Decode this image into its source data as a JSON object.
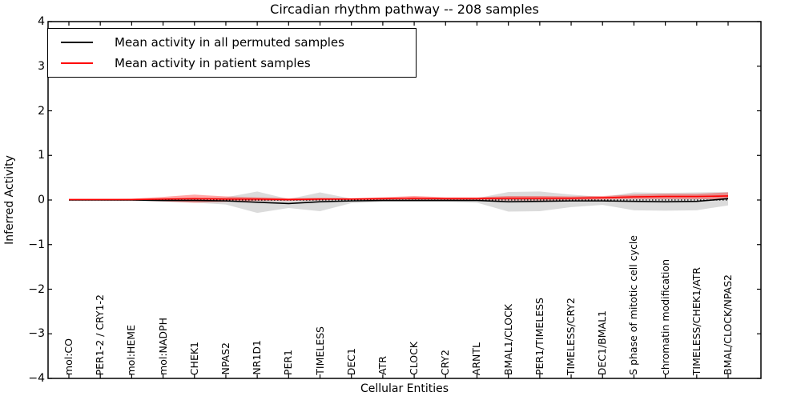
{
  "chart_data": {
    "type": "line",
    "title": "Circadian rhythm pathway -- 208 samples",
    "xlabel": "Cellular Entities",
    "ylabel": "Inferred Activity",
    "ylim": [
      -4,
      4
    ],
    "ytick_interval": 1,
    "grid": false,
    "legend_position": "upper left",
    "baseline": 0,
    "baseline_style": "dotted",
    "categories": [
      "mol:CO",
      "PER1-2 / CRY1-2",
      "mol:HEME",
      "mol:NADPH",
      "CHEK1",
      "NPAS2",
      "NR1D1",
      "PER1",
      "TIMELESS",
      "DEC1",
      "ATR",
      "CLOCK",
      "CRY2",
      "ARNTL",
      "BMAL1/CLOCK",
      "PER1/TIMELESS",
      "TIMELESS/CRY2",
      "DEC1/BMAL1",
      "S phase of mitotic cell cycle",
      "chromatin modification",
      "TIMELESS/CHEK1/ATR",
      "BMAL/CLOCK/NPAS2"
    ],
    "series": [
      {
        "id": "permuted",
        "name": "Mean activity in all permuted samples",
        "color": "#000000",
        "band_color": "rgba(0,0,0,0.14)",
        "values": [
          0.0,
          0.0,
          0.0,
          -0.01,
          -0.01,
          -0.02,
          -0.05,
          -0.08,
          -0.04,
          -0.02,
          -0.01,
          -0.01,
          -0.01,
          -0.01,
          -0.04,
          -0.03,
          -0.02,
          -0.02,
          -0.03,
          -0.04,
          -0.03,
          0.03
        ],
        "band_halfwidth": [
          0.01,
          0.01,
          0.02,
          0.03,
          0.05,
          0.08,
          0.24,
          0.1,
          0.21,
          0.05,
          0.03,
          0.03,
          0.03,
          0.05,
          0.22,
          0.22,
          0.14,
          0.09,
          0.2,
          0.2,
          0.2,
          0.15
        ]
      },
      {
        "id": "patient",
        "name": "Mean activity in patient samples",
        "color": "#ff0000",
        "band_color": "rgba(255,0,0,0.35)",
        "values": [
          0.01,
          0.01,
          0.01,
          0.02,
          0.03,
          0.02,
          0.02,
          0.01,
          0.02,
          0.02,
          0.03,
          0.04,
          0.03,
          0.03,
          0.04,
          0.04,
          0.04,
          0.05,
          0.07,
          0.08,
          0.08,
          0.09
        ],
        "band_halfwidth": [
          0.01,
          0.015,
          0.02,
          0.05,
          0.09,
          0.06,
          0.04,
          0.03,
          0.03,
          0.02,
          0.03,
          0.05,
          0.03,
          0.03,
          0.05,
          0.05,
          0.04,
          0.04,
          0.05,
          0.06,
          0.06,
          0.08
        ]
      }
    ]
  }
}
